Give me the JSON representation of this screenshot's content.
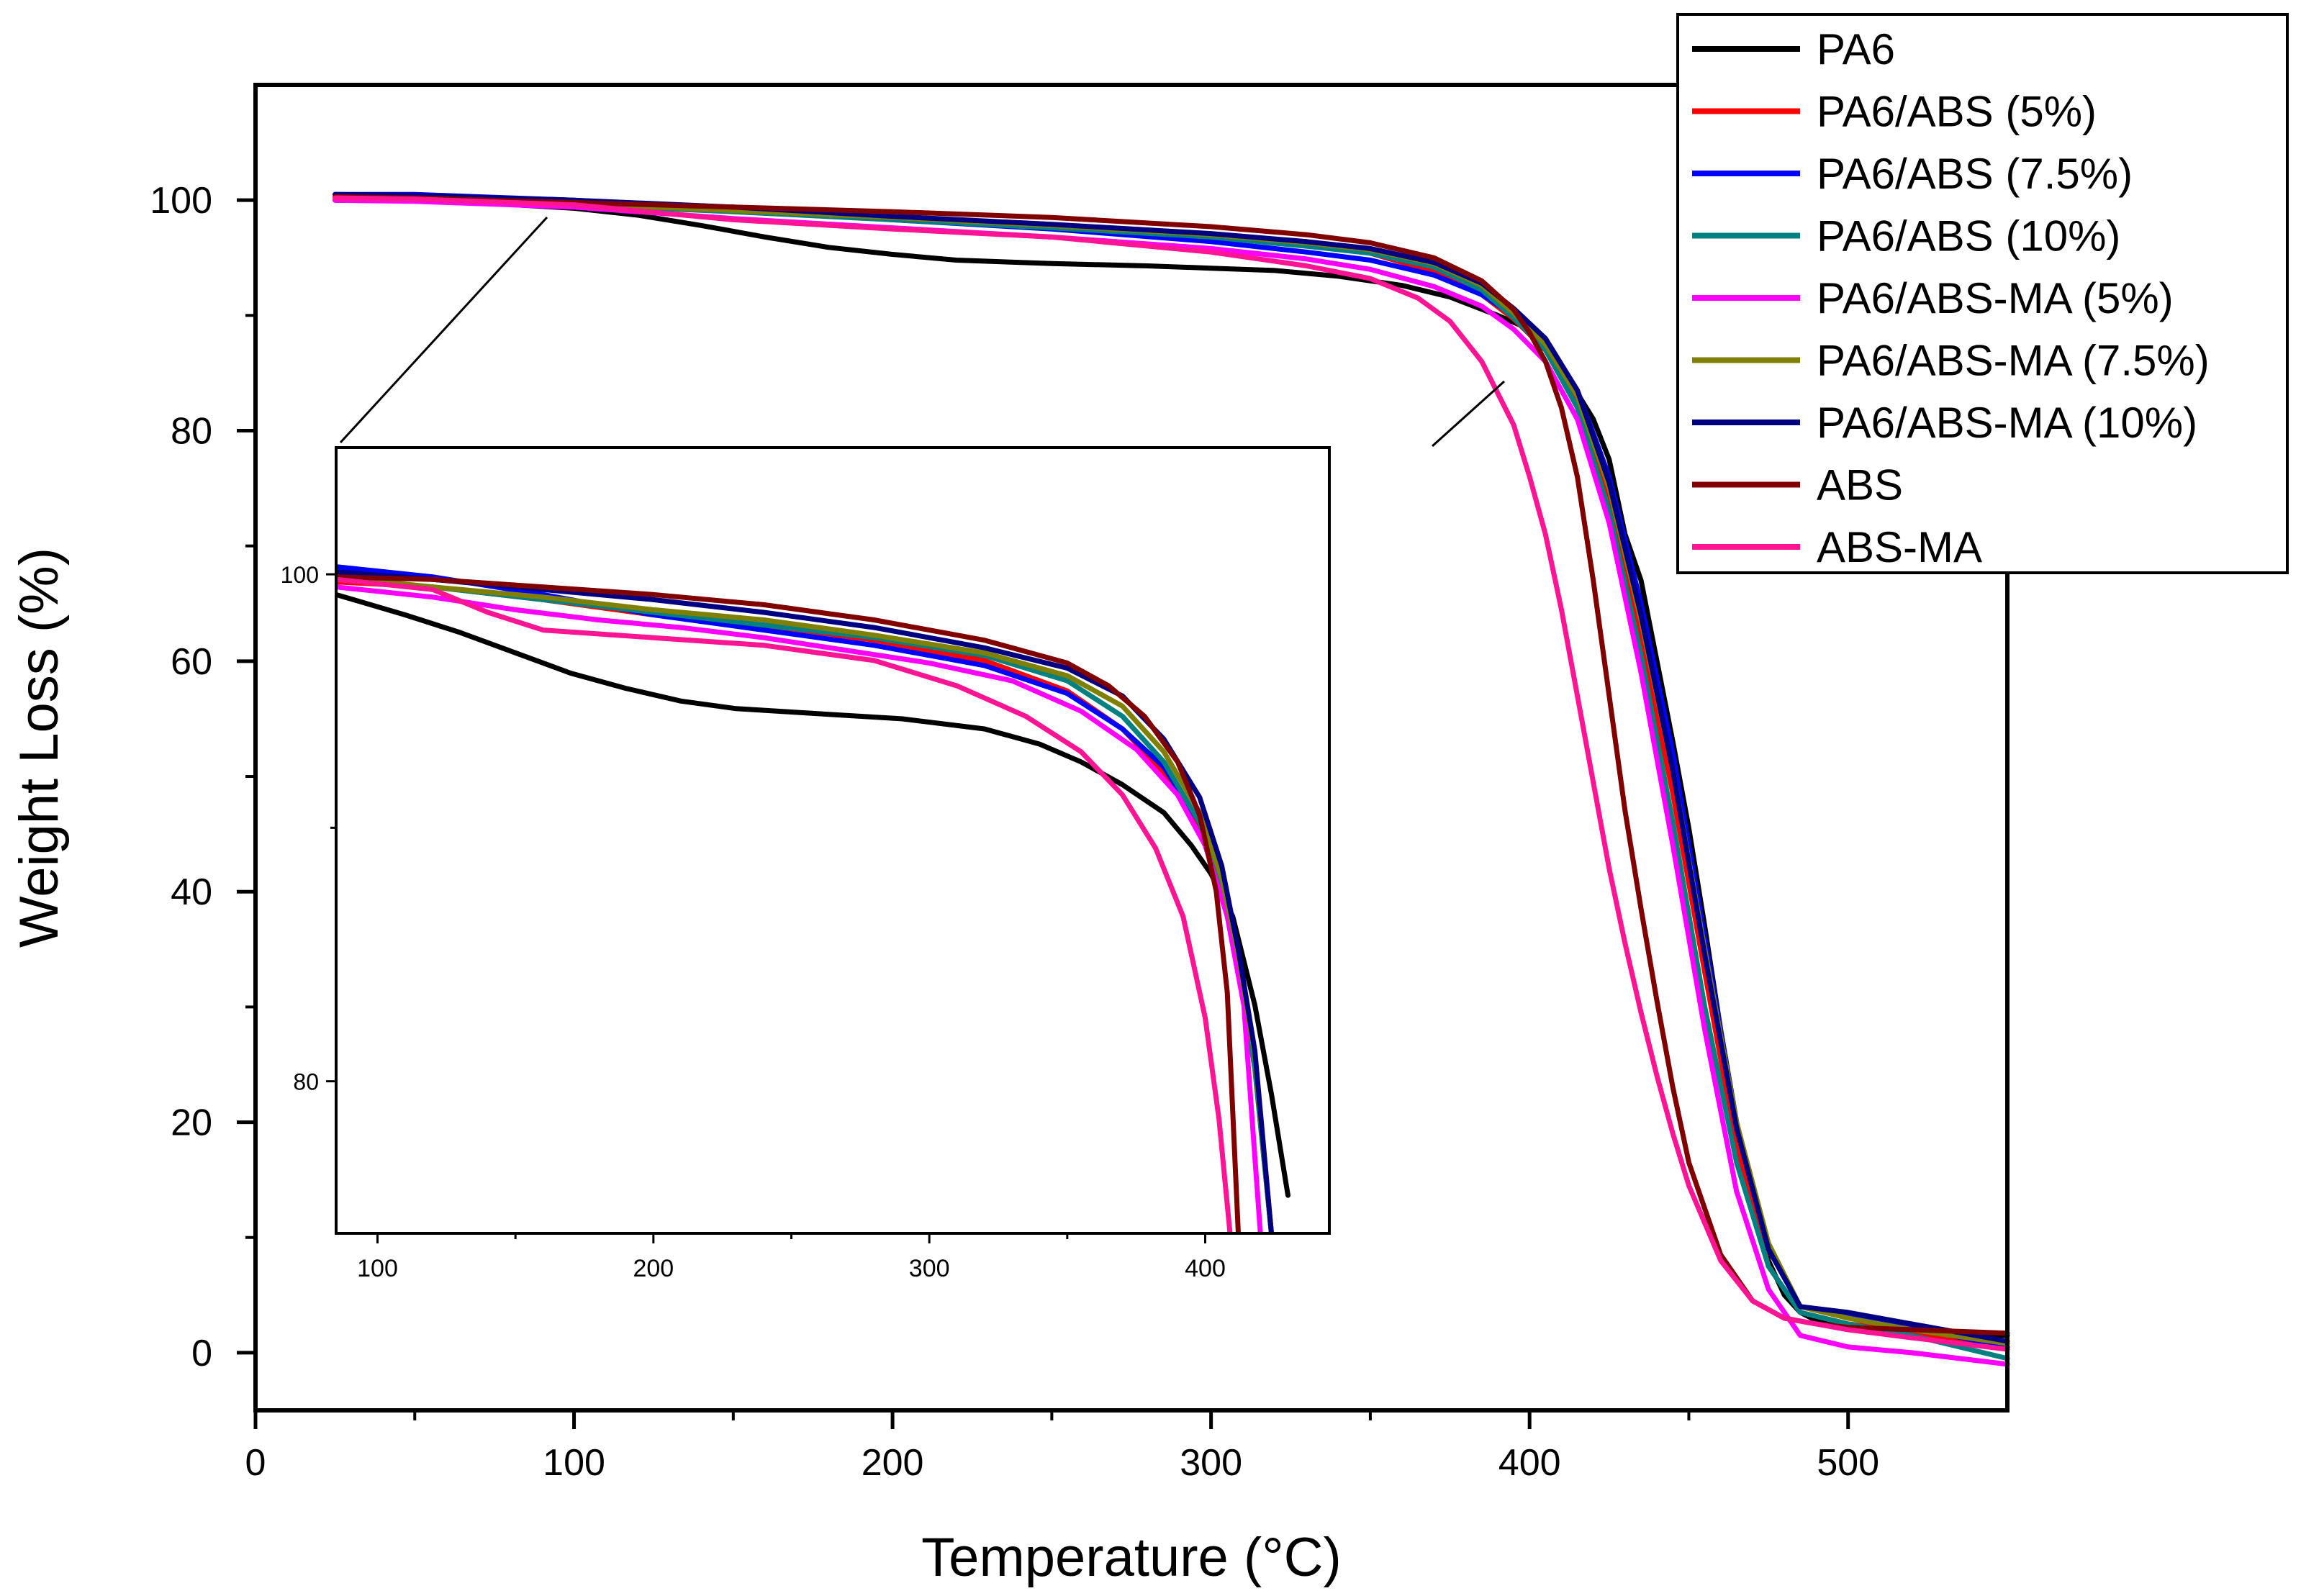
{
  "chart_data": [
    {
      "id": "main",
      "type": "line",
      "xlabel": "Temperature (°C)",
      "ylabel": "Weight Loss (%)",
      "xlim": [
        0,
        550
      ],
      "ylim": [
        -5,
        110
      ],
      "x_ticks": [
        0,
        100,
        200,
        300,
        400,
        500
      ],
      "y_ticks": [
        0,
        20,
        40,
        60,
        80,
        100
      ],
      "series": [
        {
          "name": "PA6",
          "color": "#000000",
          "x": [
            25,
            50,
            75,
            100,
            120,
            140,
            160,
            180,
            200,
            220,
            250,
            280,
            300,
            320,
            340,
            360,
            375,
            390,
            400,
            410,
            420,
            425,
            430,
            435,
            440,
            445,
            450,
            455,
            460,
            465,
            470,
            475,
            480,
            485,
            490,
            500,
            520,
            550
          ],
          "y": [
            100,
            100,
            99.7,
            99.3,
            98.7,
            97.8,
            96.8,
            95.9,
            95.3,
            94.8,
            94.5,
            94.3,
            94.1,
            93.9,
            93.4,
            92.6,
            91.6,
            90.0,
            88.8,
            85.5,
            81.0,
            77.5,
            71.0,
            67.0,
            60.0,
            53.0,
            45.5,
            37.0,
            28.0,
            20.0,
            13.0,
            8.0,
            5.0,
            3.5,
            2.8,
            2.2,
            1.8,
            1.5
          ]
        },
        {
          "name": "PA6/ABS (5%)",
          "color": "#ff0000",
          "x": [
            25,
            50,
            100,
            150,
            200,
            250,
            300,
            330,
            350,
            370,
            385,
            395,
            405,
            415,
            425,
            435,
            445,
            455,
            465,
            475,
            485,
            500,
            520,
            550
          ],
          "y": [
            100,
            100,
            99.7,
            99.2,
            98.5,
            97.8,
            96.9,
            96.2,
            95.4,
            93.8,
            91.8,
            89.7,
            87.0,
            82.5,
            74.0,
            62.0,
            48.5,
            33.0,
            18.0,
            7.5,
            3.5,
            2.5,
            1.8,
            0.5
          ]
        },
        {
          "name": "PA6/ABS (7.5%)",
          "color": "#0000ff",
          "x": [
            25,
            50,
            100,
            150,
            200,
            250,
            300,
            330,
            350,
            370,
            385,
            395,
            405,
            415,
            425,
            435,
            445,
            455,
            465,
            475,
            485,
            500,
            520,
            550
          ],
          "y": [
            100.5,
            100.5,
            100,
            99.2,
            98.3,
            97.5,
            96.4,
            95.5,
            94.8,
            93.5,
            91.8,
            90.0,
            87.8,
            83.5,
            76.0,
            65.0,
            52.0,
            36.0,
            20.0,
            9.0,
            4.0,
            3.2,
            2.2,
            0.5
          ]
        },
        {
          "name": "PA6/ABS (10%)",
          "color": "#008080",
          "x": [
            25,
            50,
            100,
            150,
            200,
            250,
            300,
            330,
            350,
            370,
            385,
            395,
            405,
            415,
            425,
            435,
            445,
            455,
            465,
            475,
            485,
            500,
            520,
            550
          ],
          "y": [
            100,
            100,
            99.6,
            99.0,
            98.3,
            97.6,
            96.8,
            96.0,
            95.4,
            94.2,
            92.2,
            89.8,
            87.0,
            82.0,
            73.0,
            60.5,
            46.0,
            30.0,
            16.5,
            7.5,
            3.5,
            2.5,
            1.5,
            -0.5
          ]
        },
        {
          "name": "PA6/ABS-MA (5%)",
          "color": "#ff00ff",
          "x": [
            25,
            50,
            100,
            150,
            200,
            250,
            300,
            330,
            350,
            370,
            385,
            395,
            405,
            415,
            425,
            435,
            445,
            455,
            465,
            475,
            485,
            500,
            520,
            550
          ],
          "y": [
            100,
            99.9,
            99.4,
            98.4,
            97.6,
            96.8,
            95.8,
            94.9,
            94.0,
            92.5,
            90.8,
            88.8,
            86.0,
            81.0,
            72.0,
            59.0,
            44.0,
            28.0,
            14.0,
            5.5,
            1.5,
            0.5,
            0,
            -1
          ]
        },
        {
          "name": "PA6/ABS-MA (7.5%)",
          "color": "#808000",
          "x": [
            25,
            50,
            100,
            150,
            200,
            250,
            300,
            330,
            350,
            370,
            385,
            395,
            405,
            415,
            425,
            435,
            445,
            455,
            465,
            475,
            485,
            500,
            520,
            550
          ],
          "y": [
            100.2,
            100.1,
            99.7,
            99.1,
            98.5,
            97.8,
            97.0,
            96.3,
            95.7,
            94.5,
            92.6,
            90.2,
            87.5,
            83.0,
            75.0,
            63.5,
            50.5,
            35.0,
            20.0,
            9.5,
            4.0,
            3.0,
            2.0,
            0.8
          ]
        },
        {
          "name": "PA6/ABS-MA (10%)",
          "color": "#000080",
          "x": [
            25,
            50,
            100,
            150,
            200,
            250,
            300,
            330,
            350,
            370,
            385,
            395,
            405,
            415,
            425,
            435,
            445,
            455,
            465,
            475,
            485,
            500,
            520,
            550
          ],
          "y": [
            100.5,
            100.4,
            100,
            99.4,
            98.6,
            97.9,
            97.1,
            96.4,
            95.8,
            94.6,
            92.8,
            90.6,
            88.0,
            83.5,
            75.5,
            64.0,
            50.5,
            34.5,
            19.5,
            9.0,
            4.0,
            3.5,
            2.5,
            1.0
          ]
        },
        {
          "name": "ABS",
          "color": "#800000",
          "x": [
            25,
            50,
            100,
            150,
            200,
            250,
            300,
            330,
            350,
            370,
            385,
            395,
            400,
            405,
            410,
            415,
            420,
            425,
            430,
            435,
            440,
            445,
            450,
            460,
            470,
            480,
            490,
            500,
            520,
            550
          ],
          "y": [
            100.3,
            100.2,
            99.8,
            99.4,
            99.0,
            98.5,
            97.7,
            97.0,
            96.3,
            95.0,
            93.0,
            90.5,
            88.5,
            86.0,
            82.0,
            76.0,
            67.0,
            57.0,
            47.0,
            38.5,
            30.5,
            23.0,
            16.5,
            8.5,
            4.5,
            3.0,
            2.5,
            2.2,
            2.0,
            1.7
          ]
        },
        {
          "name": "ABS-MA",
          "color": "#ff1493",
          "x": [
            25,
            50,
            100,
            150,
            200,
            250,
            300,
            330,
            350,
            365,
            375,
            385,
            395,
            400,
            405,
            410,
            415,
            420,
            425,
            430,
            435,
            440,
            445,
            450,
            460,
            470,
            480,
            490,
            500,
            520,
            550
          ],
          "y": [
            100.2,
            100.1,
            99.6,
            98.3,
            97.5,
            96.8,
            95.5,
            94.3,
            93.2,
            91.5,
            89.5,
            86.0,
            80.5,
            76.0,
            71.0,
            64.5,
            57.0,
            49.5,
            42.0,
            35.5,
            29.5,
            24.0,
            19.0,
            14.5,
            8.0,
            4.5,
            3.0,
            2.5,
            2.0,
            1.3,
            0.3
          ]
        }
      ]
    },
    {
      "id": "inset",
      "type": "line",
      "xlim": [
        85,
        445
      ],
      "ylim": [
        74,
        105
      ],
      "x_ticks": [
        100,
        200,
        300,
        400
      ],
      "y_ticks": [
        80,
        100
      ],
      "series_data": [
        {
          "name": "PA6",
          "color": "#000000",
          "x": [
            85,
            110,
            130,
            150,
            170,
            190,
            210,
            230,
            260,
            290,
            320,
            340,
            355,
            370,
            385,
            395,
            402,
            410,
            418,
            424,
            430
          ],
          "y": [
            99.2,
            98.4,
            97.7,
            96.9,
            96.1,
            95.5,
            95.0,
            94.7,
            94.5,
            94.3,
            93.9,
            93.3,
            92.6,
            91.7,
            90.6,
            89.3,
            88.2,
            86.5,
            83.0,
            79.5,
            75.5
          ]
        },
        {
          "name": "PA6/ABS (5%)",
          "color": "#ff0000",
          "x": [
            85,
            120,
            160,
            200,
            240,
            280,
            320,
            350,
            370,
            385,
            398,
            406,
            412,
            418,
            424
          ],
          "y": [
            99.7,
            99.5,
            99.0,
            98.4,
            98.0,
            97.4,
            96.6,
            95.4,
            93.9,
            92.2,
            90.0,
            87.5,
            84.5,
            80.5,
            74.0
          ]
        },
        {
          "name": "PA6/ABS (7.5%)",
          "color": "#0000ff",
          "x": [
            85,
            120,
            160,
            200,
            240,
            280,
            320,
            350,
            370,
            385,
            398,
            406,
            412,
            418,
            424
          ],
          "y": [
            100.3,
            99.9,
            99.2,
            98.4,
            97.8,
            97.2,
            96.4,
            95.3,
            93.9,
            92.4,
            90.2,
            87.8,
            84.8,
            80.8,
            74.0
          ]
        },
        {
          "name": "PA6/ABS (10%)",
          "color": "#008080",
          "x": [
            85,
            120,
            160,
            200,
            240,
            280,
            320,
            350,
            370,
            385,
            398,
            406,
            412,
            418,
            424
          ],
          "y": [
            99.8,
            99.5,
            99.0,
            98.5,
            98.0,
            97.5,
            96.8,
            95.8,
            94.4,
            92.6,
            90.2,
            87.5,
            84.5,
            80.5,
            74.0
          ]
        },
        {
          "name": "PA6/ABS-MA (5%)",
          "color": "#ff00ff",
          "x": [
            85,
            120,
            150,
            180,
            210,
            240,
            270,
            300,
            330,
            355,
            375,
            390,
            400,
            408,
            414,
            420
          ],
          "y": [
            99.5,
            99.1,
            98.6,
            98.2,
            97.9,
            97.5,
            97.0,
            96.5,
            95.8,
            94.6,
            93.1,
            91.3,
            89.3,
            86.5,
            83.0,
            74.0
          ]
        },
        {
          "name": "PA6/ABS-MA (7.5%)",
          "color": "#808000",
          "x": [
            85,
            120,
            160,
            200,
            240,
            280,
            320,
            350,
            370,
            385,
            398,
            406,
            412,
            418,
            424
          ],
          "y": [
            99.9,
            99.5,
            99.1,
            98.6,
            98.2,
            97.6,
            96.9,
            96.0,
            94.8,
            93.0,
            90.6,
            88.0,
            85.0,
            81.0,
            74.0
          ]
        },
        {
          "name": "PA6/ABS-MA (10%)",
          "color": "#000080",
          "x": [
            85,
            120,
            160,
            200,
            240,
            280,
            320,
            350,
            370,
            385,
            398,
            406,
            412,
            418,
            424
          ],
          "y": [
            100.1,
            99.8,
            99.4,
            99.0,
            98.5,
            97.9,
            97.1,
            96.3,
            95.2,
            93.5,
            91.2,
            88.5,
            85.2,
            81.2,
            74.0
          ]
        },
        {
          "name": "ABS",
          "color": "#800000",
          "x": [
            85,
            120,
            160,
            200,
            240,
            280,
            320,
            350,
            365,
            378,
            390,
            398,
            404,
            408,
            412
          ],
          "y": [
            99.9,
            99.8,
            99.5,
            99.2,
            98.8,
            98.2,
            97.4,
            96.5,
            95.6,
            94.4,
            92.6,
            90.5,
            87.5,
            83.5,
            74.0
          ]
        },
        {
          "name": "ABS-MA",
          "color": "#ff1493",
          "x": [
            85,
            120,
            140,
            160,
            200,
            240,
            280,
            310,
            335,
            355,
            370,
            382,
            392,
            400,
            405,
            409
          ],
          "y": [
            99.8,
            99.4,
            98.5,
            97.8,
            97.5,
            97.2,
            96.6,
            95.6,
            94.4,
            93.0,
            91.3,
            89.2,
            86.5,
            82.5,
            78.5,
            74.0
          ]
        }
      ]
    }
  ],
  "legend": {
    "placement": "top-right",
    "items": [
      {
        "label": "PA6",
        "color": "#000000"
      },
      {
        "label": "PA6/ABS (5%)",
        "color": "#ff0000"
      },
      {
        "label": "PA6/ABS (7.5%)",
        "color": "#0000ff"
      },
      {
        "label": "PA6/ABS (10%)",
        "color": "#008080"
      },
      {
        "label": "PA6/ABS-MA (5%)",
        "color": "#ff00ff"
      },
      {
        "label": "PA6/ABS-MA (7.5%)",
        "color": "#808000"
      },
      {
        "label": "PA6/ABS-MA (10%)",
        "color": "#000080"
      },
      {
        "label": "ABS",
        "color": "#800000"
      },
      {
        "label": "ABS-MA",
        "color": "#ff1493"
      }
    ]
  }
}
